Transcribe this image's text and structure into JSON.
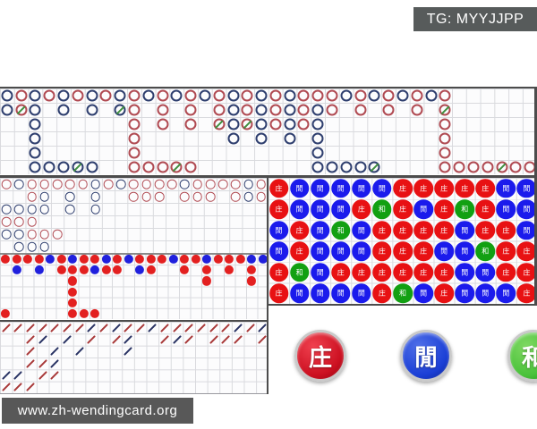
{
  "header": {
    "tg_label": "TG: MYYJJPP"
  },
  "footer": {
    "site_label": "www.zh-wendingcard.org"
  },
  "buttons": {
    "banker_label": "庄",
    "player_label": "閒",
    "tie_label": "和"
  },
  "labels": {
    "B": "庄",
    "P": "閒",
    "T": "和"
  },
  "colors": {
    "badge_bg": "#575b5b",
    "road_banker": "#b04a52",
    "road_player": "#2e3e6e",
    "tie_slash": "#3f8f3f",
    "dot_banker": "#e32020",
    "dot_player": "#2020dd",
    "slash_banker": "#a83838",
    "slash_player": "#283263",
    "bead_banker": "#e81113",
    "bead_player": "#1b1bec",
    "bead_tie": "#12a012",
    "button_banker": "#cc1021",
    "button_player": "#1b3fd6",
    "button_tie": "#49c23a"
  },
  "roads": {
    "big_road": {
      "columns": 38,
      "rows": 6,
      "marker": "hollow-circle",
      "cells": [
        [
          1,
          1,
          "P"
        ],
        [
          1,
          2,
          "P"
        ],
        [
          2,
          1,
          "B"
        ],
        [
          2,
          2,
          "B",
          "t"
        ],
        [
          3,
          1,
          "P"
        ],
        [
          3,
          2,
          "P"
        ],
        [
          3,
          3,
          "P"
        ],
        [
          3,
          4,
          "P"
        ],
        [
          3,
          5,
          "P"
        ],
        [
          3,
          6,
          "P"
        ],
        [
          4,
          1,
          "B"
        ],
        [
          4,
          6,
          "P"
        ],
        [
          5,
          1,
          "P"
        ],
        [
          5,
          2,
          "P"
        ],
        [
          5,
          6,
          "P"
        ],
        [
          6,
          1,
          "B"
        ],
        [
          6,
          6,
          "P",
          "t"
        ],
        [
          7,
          1,
          "P"
        ],
        [
          7,
          2,
          "P"
        ],
        [
          7,
          6,
          "P"
        ],
        [
          8,
          1,
          "B"
        ],
        [
          9,
          1,
          "P"
        ],
        [
          9,
          2,
          "P",
          "t"
        ],
        [
          10,
          1,
          "B"
        ],
        [
          10,
          2,
          "B"
        ],
        [
          10,
          3,
          "B"
        ],
        [
          10,
          4,
          "B"
        ],
        [
          10,
          5,
          "B"
        ],
        [
          10,
          6,
          "B"
        ],
        [
          11,
          1,
          "P"
        ],
        [
          11,
          6,
          "B"
        ],
        [
          12,
          1,
          "B"
        ],
        [
          12,
          2,
          "B"
        ],
        [
          12,
          3,
          "B"
        ],
        [
          12,
          6,
          "B"
        ],
        [
          13,
          1,
          "P"
        ],
        [
          13,
          6,
          "B",
          "t"
        ],
        [
          14,
          1,
          "B"
        ],
        [
          14,
          2,
          "B"
        ],
        [
          14,
          3,
          "B"
        ],
        [
          14,
          6,
          "B"
        ],
        [
          15,
          1,
          "P"
        ],
        [
          16,
          1,
          "B"
        ],
        [
          16,
          2,
          "B"
        ],
        [
          16,
          3,
          "B",
          "t"
        ],
        [
          17,
          1,
          "P"
        ],
        [
          17,
          2,
          "P"
        ],
        [
          17,
          3,
          "P"
        ],
        [
          17,
          4,
          "P"
        ],
        [
          18,
          1,
          "B"
        ],
        [
          18,
          2,
          "B"
        ],
        [
          18,
          3,
          "B",
          "t"
        ],
        [
          19,
          1,
          "P"
        ],
        [
          19,
          2,
          "P"
        ],
        [
          19,
          3,
          "P"
        ],
        [
          19,
          4,
          "P"
        ],
        [
          20,
          1,
          "B"
        ],
        [
          20,
          2,
          "B"
        ],
        [
          20,
          3,
          "B"
        ],
        [
          21,
          1,
          "P"
        ],
        [
          21,
          2,
          "P"
        ],
        [
          21,
          3,
          "P"
        ],
        [
          21,
          4,
          "P"
        ],
        [
          22,
          1,
          "B"
        ],
        [
          22,
          2,
          "B"
        ],
        [
          22,
          3,
          "B"
        ],
        [
          23,
          1,
          "B"
        ],
        [
          23,
          2,
          "P"
        ],
        [
          23,
          3,
          "P"
        ],
        [
          23,
          4,
          "P"
        ],
        [
          23,
          5,
          "P"
        ],
        [
          23,
          6,
          "P"
        ],
        [
          24,
          1,
          "B"
        ],
        [
          24,
          2,
          "B"
        ],
        [
          24,
          6,
          "P"
        ],
        [
          25,
          1,
          "P"
        ],
        [
          25,
          6,
          "P"
        ],
        [
          26,
          1,
          "B"
        ],
        [
          26,
          2,
          "B"
        ],
        [
          26,
          6,
          "P"
        ],
        [
          27,
          1,
          "P"
        ],
        [
          27,
          6,
          "P",
          "t"
        ],
        [
          28,
          1,
          "B"
        ],
        [
          28,
          2,
          "B"
        ],
        [
          29,
          1,
          "P"
        ],
        [
          30,
          1,
          "B"
        ],
        [
          30,
          2,
          "B"
        ],
        [
          31,
          1,
          "P"
        ],
        [
          32,
          1,
          "B"
        ],
        [
          32,
          2,
          "B",
          "t"
        ],
        [
          32,
          3,
          "B"
        ],
        [
          32,
          4,
          "B"
        ],
        [
          32,
          5,
          "B"
        ],
        [
          32,
          6,
          "B"
        ],
        [
          33,
          6,
          "B"
        ],
        [
          34,
          6,
          "B"
        ],
        [
          35,
          6,
          "B"
        ],
        [
          36,
          6,
          "B",
          "t"
        ],
        [
          37,
          6,
          "B"
        ],
        [
          38,
          6,
          "B"
        ]
      ]
    },
    "big_eye_road": {
      "columns": 21,
      "rows": 6,
      "marker": "hollow-circle",
      "cells": [
        [
          1,
          1,
          "B"
        ],
        [
          2,
          1,
          "P"
        ],
        [
          3,
          1,
          "B"
        ],
        [
          4,
          1,
          "B"
        ],
        [
          5,
          1,
          "B"
        ],
        [
          6,
          1,
          "B"
        ],
        [
          7,
          1,
          "B"
        ],
        [
          8,
          1,
          "P"
        ],
        [
          9,
          1,
          "B"
        ],
        [
          10,
          1,
          "P"
        ],
        [
          11,
          1,
          "B"
        ],
        [
          12,
          1,
          "B"
        ],
        [
          13,
          1,
          "B"
        ],
        [
          14,
          1,
          "B"
        ],
        [
          15,
          1,
          "P"
        ],
        [
          16,
          1,
          "B"
        ],
        [
          17,
          1,
          "B"
        ],
        [
          18,
          1,
          "B"
        ],
        [
          19,
          1,
          "B"
        ],
        [
          20,
          1,
          "P"
        ],
        [
          21,
          1,
          "B"
        ],
        [
          3,
          2,
          "B"
        ],
        [
          4,
          2,
          "P"
        ],
        [
          6,
          2,
          "P"
        ],
        [
          8,
          2,
          "P"
        ],
        [
          11,
          2,
          "B"
        ],
        [
          12,
          2,
          "B"
        ],
        [
          13,
          2,
          "B"
        ],
        [
          15,
          2,
          "B"
        ],
        [
          16,
          2,
          "B"
        ],
        [
          17,
          2,
          "B"
        ],
        [
          19,
          2,
          "B"
        ],
        [
          20,
          2,
          "P"
        ],
        [
          21,
          2,
          "B"
        ],
        [
          1,
          3,
          "P"
        ],
        [
          2,
          3,
          "P"
        ],
        [
          3,
          3,
          "P"
        ],
        [
          4,
          3,
          "P"
        ],
        [
          6,
          3,
          "P"
        ],
        [
          8,
          3,
          "P"
        ],
        [
          1,
          4,
          "B"
        ],
        [
          2,
          4,
          "B"
        ],
        [
          3,
          4,
          "B"
        ],
        [
          1,
          5,
          "P"
        ],
        [
          2,
          5,
          "P"
        ],
        [
          3,
          5,
          "B"
        ],
        [
          4,
          5,
          "B"
        ],
        [
          5,
          5,
          "B"
        ],
        [
          2,
          6,
          "P"
        ],
        [
          3,
          6,
          "P"
        ],
        [
          4,
          6,
          "P"
        ]
      ]
    },
    "small_road": {
      "columns": 24,
      "rows": 6,
      "marker": "solid-dot",
      "cells": [
        [
          1,
          1,
          "B"
        ],
        [
          2,
          1,
          "B"
        ],
        [
          3,
          1,
          "B"
        ],
        [
          4,
          1,
          "B"
        ],
        [
          5,
          1,
          "P"
        ],
        [
          6,
          1,
          "B"
        ],
        [
          7,
          1,
          "P"
        ],
        [
          8,
          1,
          "B"
        ],
        [
          9,
          1,
          "B"
        ],
        [
          10,
          1,
          "P"
        ],
        [
          11,
          1,
          "B"
        ],
        [
          12,
          1,
          "P"
        ],
        [
          13,
          1,
          "B"
        ],
        [
          14,
          1,
          "B"
        ],
        [
          15,
          1,
          "B"
        ],
        [
          16,
          1,
          "P"
        ],
        [
          17,
          1,
          "B"
        ],
        [
          18,
          1,
          "B"
        ],
        [
          19,
          1,
          "P"
        ],
        [
          20,
          1,
          "B"
        ],
        [
          21,
          1,
          "B"
        ],
        [
          22,
          1,
          "B"
        ],
        [
          23,
          1,
          "P"
        ],
        [
          24,
          1,
          "P"
        ],
        [
          2,
          2,
          "P"
        ],
        [
          4,
          2,
          "P"
        ],
        [
          6,
          2,
          "B"
        ],
        [
          7,
          2,
          "B"
        ],
        [
          8,
          2,
          "B"
        ],
        [
          9,
          2,
          "P"
        ],
        [
          10,
          2,
          "B"
        ],
        [
          11,
          2,
          "B"
        ],
        [
          13,
          2,
          "P"
        ],
        [
          14,
          2,
          "B"
        ],
        [
          17,
          2,
          "B"
        ],
        [
          19,
          2,
          "B"
        ],
        [
          21,
          2,
          "B"
        ],
        [
          23,
          2,
          "B"
        ],
        [
          7,
          3,
          "B"
        ],
        [
          19,
          3,
          "B"
        ],
        [
          23,
          3,
          "B"
        ],
        [
          7,
          4,
          "B"
        ],
        [
          7,
          5,
          "B"
        ],
        [
          1,
          6,
          "B"
        ],
        [
          7,
          6,
          "B"
        ],
        [
          8,
          6,
          "B"
        ],
        [
          9,
          6,
          "B"
        ]
      ]
    },
    "cockroach_road": {
      "columns": 22,
      "rows": 6,
      "marker": "slash",
      "cells": [
        [
          1,
          1,
          "B"
        ],
        [
          2,
          1,
          "B"
        ],
        [
          3,
          1,
          "B"
        ],
        [
          4,
          1,
          "B"
        ],
        [
          5,
          1,
          "B"
        ],
        [
          6,
          1,
          "B"
        ],
        [
          7,
          1,
          "B"
        ],
        [
          8,
          1,
          "P"
        ],
        [
          9,
          1,
          "B"
        ],
        [
          10,
          1,
          "P"
        ],
        [
          11,
          1,
          "B"
        ],
        [
          12,
          1,
          "B"
        ],
        [
          13,
          1,
          "P"
        ],
        [
          14,
          1,
          "B"
        ],
        [
          15,
          1,
          "B"
        ],
        [
          16,
          1,
          "B"
        ],
        [
          17,
          1,
          "B"
        ],
        [
          18,
          1,
          "B"
        ],
        [
          19,
          1,
          "B"
        ],
        [
          20,
          1,
          "P"
        ],
        [
          21,
          1,
          "B"
        ],
        [
          22,
          1,
          "P"
        ],
        [
          3,
          2,
          "B"
        ],
        [
          4,
          2,
          "P"
        ],
        [
          6,
          2,
          "P"
        ],
        [
          8,
          2,
          "B"
        ],
        [
          10,
          2,
          "B"
        ],
        [
          11,
          2,
          "P"
        ],
        [
          14,
          2,
          "B"
        ],
        [
          15,
          2,
          "P"
        ],
        [
          16,
          2,
          "B"
        ],
        [
          18,
          2,
          "B"
        ],
        [
          19,
          2,
          "B"
        ],
        [
          20,
          2,
          "B"
        ],
        [
          22,
          2,
          "B"
        ],
        [
          3,
          3,
          "B"
        ],
        [
          5,
          3,
          "P"
        ],
        [
          7,
          3,
          "P"
        ],
        [
          11,
          3,
          "P"
        ],
        [
          3,
          4,
          "B"
        ],
        [
          4,
          4,
          "B"
        ],
        [
          5,
          4,
          "P"
        ],
        [
          1,
          5,
          "P"
        ],
        [
          2,
          5,
          "P"
        ],
        [
          4,
          5,
          "B"
        ],
        [
          5,
          5,
          "B"
        ],
        [
          1,
          6,
          "B"
        ],
        [
          2,
          6,
          "B"
        ],
        [
          3,
          6,
          "B"
        ]
      ]
    }
  },
  "bead_plate": {
    "columns": 13,
    "rows": 6,
    "grid": [
      "BPPPPPBBBBBPP",
      "BPPPBTBPBTBPP",
      "PBPTPBBBBPBBP",
      "PBPPPBBBPPTBB",
      "BTPBBBBBBPPBB",
      "BPPPPBTPBPPPB"
    ]
  }
}
